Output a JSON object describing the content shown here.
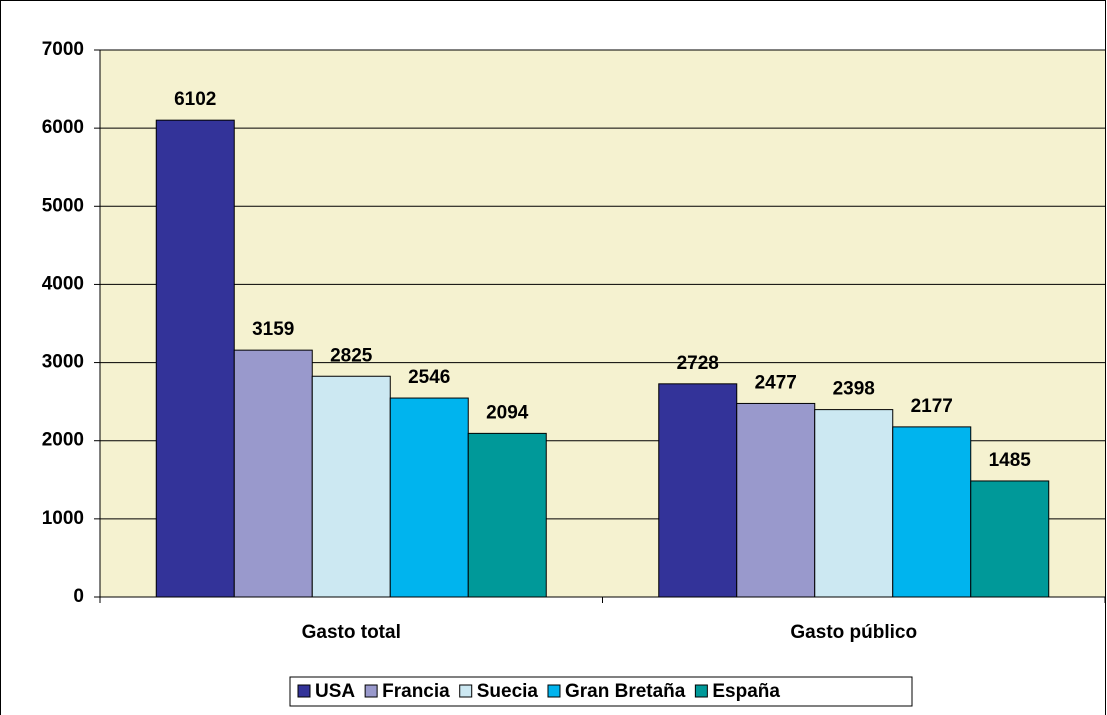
{
  "chart_data": {
    "type": "bar",
    "categories": [
      "Gasto total",
      "Gasto público"
    ],
    "series": [
      {
        "name": "USA",
        "color": "#333399",
        "values": [
          6102,
          2728
        ]
      },
      {
        "name": "Francia",
        "color": "#9999cc",
        "values": [
          3159,
          2477
        ]
      },
      {
        "name": "Suecia",
        "color": "#cce8f2",
        "values": [
          2825,
          2398
        ]
      },
      {
        "name": "Gran Bretaña",
        "color": "#00b4ee",
        "values": [
          2546,
          2177
        ]
      },
      {
        "name": "España",
        "color": "#009999",
        "values": [
          2094,
          1485
        ]
      }
    ],
    "ylim": [
      0,
      7000
    ],
    "yticks": [
      0,
      1000,
      2000,
      3000,
      4000,
      5000,
      6000,
      7000
    ],
    "grid": true,
    "legend": "bottom"
  }
}
